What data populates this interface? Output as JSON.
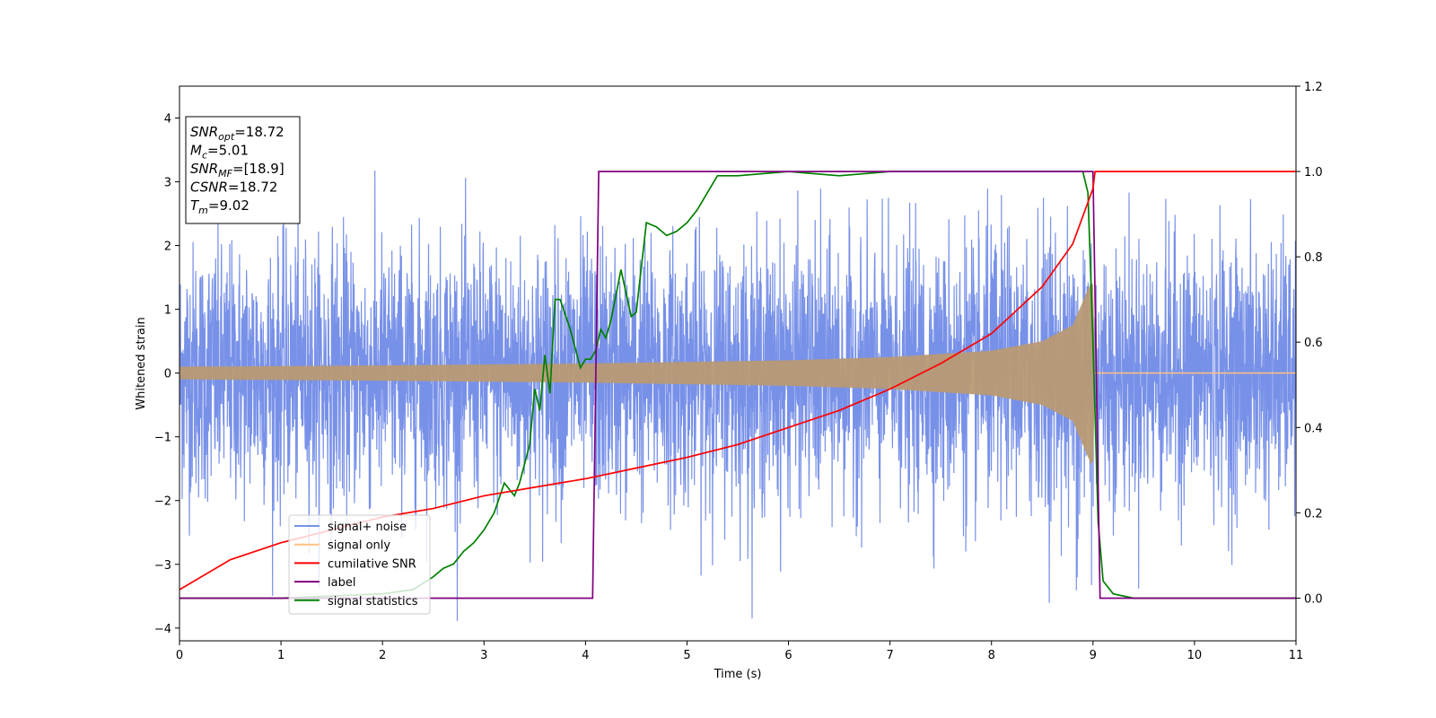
{
  "chart_data": {
    "type": "line",
    "xlabel": "Time (s)",
    "ylabel": "Whitened strain",
    "xlim": [
      0,
      11
    ],
    "ylim_left": [
      -4.2,
      4.5
    ],
    "ylim_right": [
      -0.1,
      1.2
    ],
    "x_ticks": [
      0,
      1,
      2,
      3,
      4,
      5,
      6,
      7,
      8,
      9,
      10,
      11
    ],
    "y_left_ticks": [
      -4,
      -3,
      -2,
      -1,
      0,
      1,
      2,
      3,
      4
    ],
    "y_right_ticks": [
      0.0,
      0.2,
      0.4,
      0.6,
      0.8,
      1.0,
      1.2
    ],
    "legend_position": "lower-left",
    "grid": false,
    "info_box": [
      {
        "main": "SNR",
        "sub": "opt",
        "rest": "=18.72"
      },
      {
        "main": "M",
        "sub": "c",
        "rest": "=5.01"
      },
      {
        "main": "SNR",
        "sub": "MF",
        "rest": "=[18.9]"
      },
      {
        "main": "CSNR",
        "sub": "",
        "rest": "=18.72"
      },
      {
        "main": "T",
        "sub": "m",
        "rest": "=9.02"
      }
    ],
    "series": [
      {
        "name": "signal+ noise",
        "color": "#7891e8",
        "axis": "left",
        "description_values": {
          "noise_sigma": 1.0,
          "x_range": [
            0,
            11
          ]
        }
      },
      {
        "name": "signal only",
        "color": "#ffc180",
        "axis": "left",
        "envelope": {
          "x": [
            0,
            2,
            4,
            6,
            7,
            8,
            8.5,
            8.8,
            9.0,
            9.02,
            11
          ],
          "amp": [
            0.1,
            0.12,
            0.15,
            0.2,
            0.25,
            0.35,
            0.5,
            0.75,
            1.5,
            0.0,
            0.0
          ]
        }
      },
      {
        "name": "cumilative SNR",
        "color": "#ff0000",
        "axis": "right",
        "x": [
          0,
          0.5,
          1,
          1.5,
          2,
          2.5,
          3,
          3.5,
          4,
          4.5,
          5,
          5.5,
          6,
          6.5,
          7,
          7.5,
          8,
          8.5,
          8.8,
          9.0,
          9.02,
          11
        ],
        "y": [
          0.02,
          0.09,
          0.13,
          0.16,
          0.19,
          0.21,
          0.24,
          0.26,
          0.28,
          0.305,
          0.33,
          0.36,
          0.4,
          0.44,
          0.49,
          0.55,
          0.62,
          0.73,
          0.83,
          0.96,
          1.0,
          1.0
        ]
      },
      {
        "name": "label",
        "color": "#800080",
        "axis": "right",
        "x": [
          0,
          4.07,
          4.13,
          9.0,
          9.07,
          11
        ],
        "y": [
          0.0,
          0.0,
          1.0,
          1.0,
          0.0,
          0.0
        ]
      },
      {
        "name": "signal statistics",
        "color": "#008000",
        "axis": "right",
        "x": [
          0,
          1,
          2,
          2.3,
          2.5,
          2.6,
          2.7,
          2.8,
          2.9,
          3.0,
          3.1,
          3.2,
          3.3,
          3.35,
          3.45,
          3.5,
          3.55,
          3.6,
          3.65,
          3.7,
          3.75,
          3.85,
          3.95,
          4.0,
          4.05,
          4.1,
          4.15,
          4.2,
          4.25,
          4.35,
          4.45,
          4.5,
          4.6,
          4.7,
          4.8,
          4.9,
          5.0,
          5.1,
          5.2,
          5.3,
          5.5,
          6.0,
          6.5,
          7.0,
          7.5,
          8.0,
          8.5,
          8.8,
          8.9,
          8.95,
          9.0,
          9.05,
          9.1,
          9.2,
          9.4,
          11
        ],
        "y": [
          0.0,
          0.0,
          0.01,
          0.02,
          0.05,
          0.07,
          0.08,
          0.11,
          0.13,
          0.16,
          0.2,
          0.27,
          0.24,
          0.27,
          0.36,
          0.49,
          0.44,
          0.57,
          0.48,
          0.7,
          0.7,
          0.63,
          0.54,
          0.56,
          0.56,
          0.58,
          0.63,
          0.61,
          0.65,
          0.77,
          0.66,
          0.67,
          0.88,
          0.87,
          0.85,
          0.86,
          0.88,
          0.91,
          0.95,
          0.99,
          0.99,
          1.0,
          0.99,
          1.0,
          1.0,
          1.0,
          1.0,
          1.0,
          1.0,
          0.95,
          0.6,
          0.18,
          0.04,
          0.01,
          0.0,
          0.0
        ]
      }
    ]
  }
}
